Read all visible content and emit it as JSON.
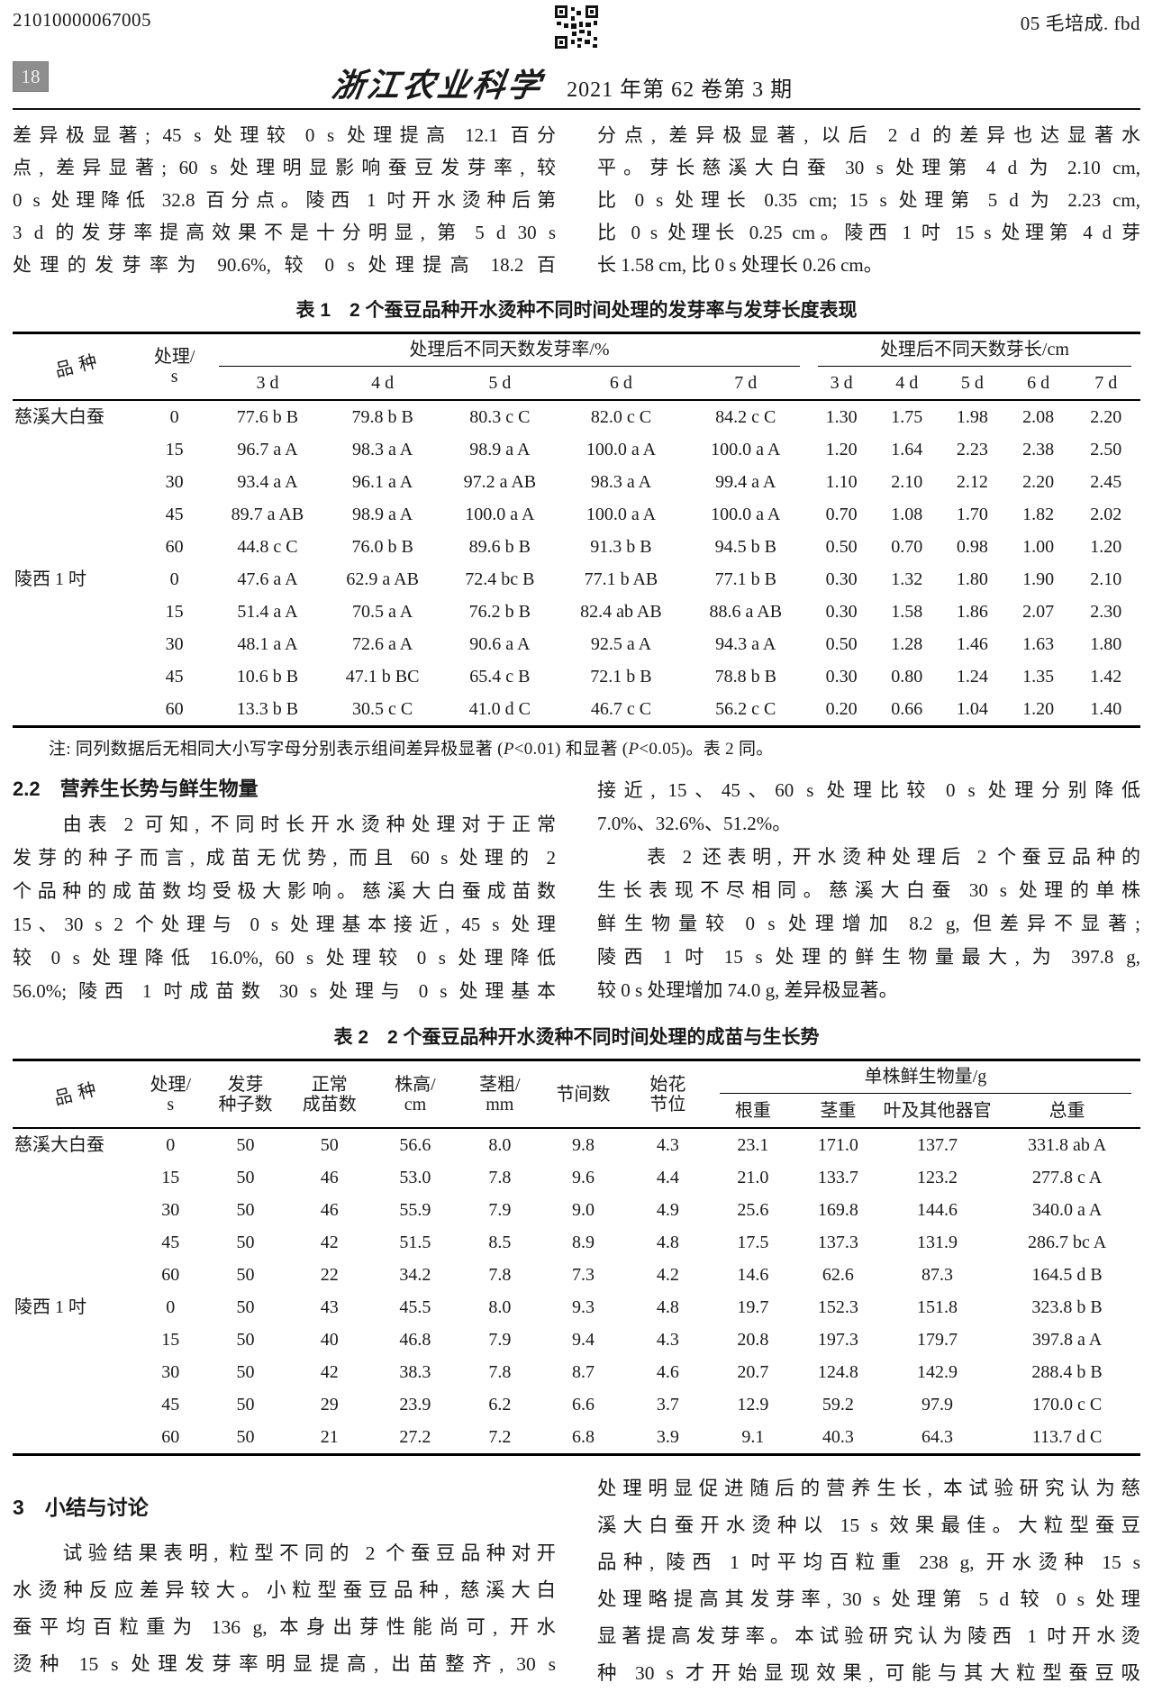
{
  "header": {
    "doc_number": "21010000067005",
    "file_label": "05 毛培成. fbd",
    "page_number": "18",
    "journal_name": "浙江农业科学",
    "issue_info": "2021 年第 62 卷第 3 期",
    "qr_icon": "qr-code"
  },
  "intro": {
    "left_lines": [
      "差异极显著; 45 s 处理较 0 s 处理提高 12.1 百分",
      "点, 差异显著; 60 s 处理明显影响蚕豆发芽率, 较",
      "0 s 处理降低 32.8 百分点。陵西 1 吋开水烫种后第",
      "3 d 的发芽率提高效果不是十分明显, 第 5 d 30 s",
      "处理的发芽率为 90.6%, 较 0 s 处理提高 18.2 百"
    ],
    "right_lines": [
      "分点, 差异极显著, 以后 2 d 的差异也达显著水",
      "平。芽长慈溪大白蚕 30 s 处理第 4 d 为 2.10 cm,",
      "比 0 s 处理长 0.35 cm; 15 s 处理第 5 d 为 2.23 cm,",
      "比 0 s 处理长 0.25 cm。陵西 1 吋 15 s 处理第 4 d 芽",
      "长 1.58 cm, 比 0 s 处理长 0.26 cm。"
    ]
  },
  "table1": {
    "title": "表 1　2 个蚕豆品种开水烫种不同时间处理的发芽率与发芽长度表现",
    "header": {
      "variety": "品种",
      "treatment": "处理/\ns",
      "group_rate": "处理后不同天数发芽率/%",
      "group_length": "处理后不同天数芽长/cm",
      "days": [
        "3 d",
        "4 d",
        "5 d",
        "6 d",
        "7 d"
      ]
    },
    "rows": [
      {
        "v": "慈溪大白蚕",
        "t": "0",
        "r": [
          "77.6 b B",
          "79.8 b B",
          "80.3 c C",
          "82.0 c C",
          "84.2 c C"
        ],
        "l": [
          "1.30",
          "1.75",
          "1.98",
          "2.08",
          "2.20"
        ]
      },
      {
        "v": "",
        "t": "15",
        "r": [
          "96.7 a A",
          "98.3 a A",
          "98.9 a A",
          "100.0 a A",
          "100.0 a A"
        ],
        "l": [
          "1.20",
          "1.64",
          "2.23",
          "2.38",
          "2.50"
        ]
      },
      {
        "v": "",
        "t": "30",
        "r": [
          "93.4 a A",
          "96.1 a A",
          "97.2 a AB",
          "98.3 a A",
          "99.4 a A"
        ],
        "l": [
          "1.10",
          "2.10",
          "2.12",
          "2.20",
          "2.45"
        ]
      },
      {
        "v": "",
        "t": "45",
        "r": [
          "89.7 a AB",
          "98.9 a A",
          "100.0 a A",
          "100.0 a A",
          "100.0 a A"
        ],
        "l": [
          "0.70",
          "1.08",
          "1.70",
          "1.82",
          "2.02"
        ]
      },
      {
        "v": "",
        "t": "60",
        "r": [
          "44.8 c C",
          "76.0 b B",
          "89.6 b B",
          "91.3 b B",
          "94.5 b B"
        ],
        "l": [
          "0.50",
          "0.70",
          "0.98",
          "1.00",
          "1.20"
        ]
      },
      {
        "v": "陵西 1 吋",
        "t": "0",
        "r": [
          "47.6 a A",
          "62.9 a AB",
          "72.4 bc B",
          "77.1 b AB",
          "77.1 b B"
        ],
        "l": [
          "0.30",
          "1.32",
          "1.80",
          "1.90",
          "2.10"
        ]
      },
      {
        "v": "",
        "t": "15",
        "r": [
          "51.4 a A",
          "70.5 a A",
          "76.2 b B",
          "82.4 ab AB",
          "88.6 a AB"
        ],
        "l": [
          "0.30",
          "1.58",
          "1.86",
          "2.07",
          "2.30"
        ]
      },
      {
        "v": "",
        "t": "30",
        "r": [
          "48.1 a A",
          "72.6 a A",
          "90.6 a A",
          "92.5 a A",
          "94.3 a A"
        ],
        "l": [
          "0.50",
          "1.28",
          "1.46",
          "1.63",
          "1.80"
        ]
      },
      {
        "v": "",
        "t": "45",
        "r": [
          "10.6 b B",
          "47.1 b BC",
          "65.4 c B",
          "72.1 b B",
          "78.8 b B"
        ],
        "l": [
          "0.30",
          "0.80",
          "1.24",
          "1.35",
          "1.42"
        ]
      },
      {
        "v": "",
        "t": "60",
        "r": [
          "13.3 b B",
          "30.5 c C",
          "41.0 d C",
          "46.7 c C",
          "56.2 c C"
        ],
        "l": [
          "0.20",
          "0.66",
          "1.04",
          "1.20",
          "1.40"
        ]
      }
    ],
    "note_head": "注: 同列数据后无相同大小写字母分别表示组间差异极显著 (",
    "note_p1": "P",
    "note_mid1": "<0.01) 和显著 (",
    "note_p2": "P",
    "note_tail": "<0.05)。表 2 同。"
  },
  "section22": {
    "heading": "2.2　营养生长势与鲜生物量",
    "left_lines": [
      "　　由表 2 可知, 不同时长开水烫种处理对于正常",
      "发芽的种子而言, 成苗无优势, 而且 60 s 处理的 2",
      "个品种的成苗数均受极大影响。慈溪大白蚕成苗数",
      "15、30 s 2 个处理与 0 s 处理基本接近, 45 s 处理",
      "较 0 s 处理降低 16.0%, 60 s 处理较 0 s 处理降低",
      "56.0%; 陵西 1 吋成苗数 30 s 处理与 0 s 处理基本"
    ],
    "right_p1_lines": [
      "接近, 15、45、60 s 处理比较 0 s 处理分别降低",
      "7.0%、32.6%、51.2%。"
    ],
    "right_p2_lines": [
      "　　表 2 还表明, 开水烫种处理后 2 个蚕豆品种的",
      "生长表现不尽相同。慈溪大白蚕 30 s 处理的单株",
      "鲜生物量较 0 s 处理增加 8.2 g, 但差异不显著;",
      "陵西 1 吋 15 s 处理的鲜生物量最大, 为 397.8 g,",
      "较 0 s 处理增加 74.0 g, 差异极显著。"
    ]
  },
  "table2": {
    "title": "表 2　2 个蚕豆品种开水烫种不同时间处理的成苗与生长势",
    "header": {
      "variety": "品种",
      "treatment": "处理/\ns",
      "seeds": "发芽\n种子数",
      "seedlings": "正常\n成苗数",
      "height": "株高/\ncm",
      "stem_diameter": "茎粗/\nmm",
      "internodes": "节间数",
      "first_flower_node": "始花\n节位",
      "group_biomass": "单株鲜生物量/g",
      "sub": [
        "根重",
        "茎重",
        "叶及其他器官",
        "总重"
      ]
    },
    "rows": [
      {
        "v": "慈溪大白蚕",
        "t": "0",
        "c": [
          "50",
          "50",
          "56.6",
          "8.0",
          "9.8",
          "4.3",
          "23.1",
          "171.0",
          "137.7",
          "331.8 ab A"
        ]
      },
      {
        "v": "",
        "t": "15",
        "c": [
          "50",
          "46",
          "53.0",
          "7.8",
          "9.6",
          "4.4",
          "21.0",
          "133.7",
          "123.2",
          "277.8 c  A"
        ]
      },
      {
        "v": "",
        "t": "30",
        "c": [
          "50",
          "46",
          "55.9",
          "7.9",
          "9.0",
          "4.9",
          "25.6",
          "169.8",
          "144.6",
          "340.0 a  A"
        ]
      },
      {
        "v": "",
        "t": "45",
        "c": [
          "50",
          "42",
          "51.5",
          "8.5",
          "8.9",
          "4.8",
          "17.5",
          "137.3",
          "131.9",
          "286.7 bc A"
        ]
      },
      {
        "v": "",
        "t": "60",
        "c": [
          "50",
          "22",
          "34.2",
          "7.8",
          "7.3",
          "4.2",
          "14.6",
          "62.6",
          "87.3",
          "164.5 d  B"
        ]
      },
      {
        "v": "陵西 1 吋",
        "t": "0",
        "c": [
          "50",
          "43",
          "45.5",
          "8.0",
          "9.3",
          "4.8",
          "19.7",
          "152.3",
          "151.8",
          "323.8 b  B"
        ]
      },
      {
        "v": "",
        "t": "15",
        "c": [
          "50",
          "40",
          "46.8",
          "7.9",
          "9.4",
          "4.3",
          "20.8",
          "197.3",
          "179.7",
          "397.8 a  A"
        ]
      },
      {
        "v": "",
        "t": "30",
        "c": [
          "50",
          "42",
          "38.3",
          "7.8",
          "8.7",
          "4.6",
          "20.7",
          "124.8",
          "142.9",
          "288.4 b  B"
        ]
      },
      {
        "v": "",
        "t": "45",
        "c": [
          "50",
          "29",
          "23.9",
          "6.2",
          "6.6",
          "3.7",
          "12.9",
          "59.2",
          "97.9",
          "170.0 c  C"
        ]
      },
      {
        "v": "",
        "t": "60",
        "c": [
          "50",
          "21",
          "27.2",
          "7.2",
          "6.8",
          "3.9",
          "9.1",
          "40.3",
          "64.3",
          "113.7 d  C"
        ]
      }
    ]
  },
  "section3": {
    "heading": "3　小结与讨论",
    "left_lines": [
      "　　试验结果表明, 粒型不同的 2 个蚕豆品种对开",
      "水烫种反应差异较大。小粒型蚕豆品种, 慈溪大白",
      "蚕平均百粒重为 136 g, 本身出芽性能尚可, 开水",
      "烫种 15 s 处理发芽率明显提高, 出苗整齐, 30 s"
    ],
    "right_lines": [
      "处理明显促进随后的营养生长, 本试验研究认为慈",
      "溪大白蚕开水烫种以 15 s 效果最佳。大粒型蚕豆",
      "品种, 陵西 1 吋平均百粒重 238 g, 开水烫种 15 s",
      "处理略提高其发芽率, 30 s 处理第 5 d 较 0 s 处理",
      "显著提高发芽率。本试验研究认为陵西 1 吋开水烫",
      "种 30 s 才开始显现效果, 可能与其大粒型蚕豆吸"
    ]
  }
}
